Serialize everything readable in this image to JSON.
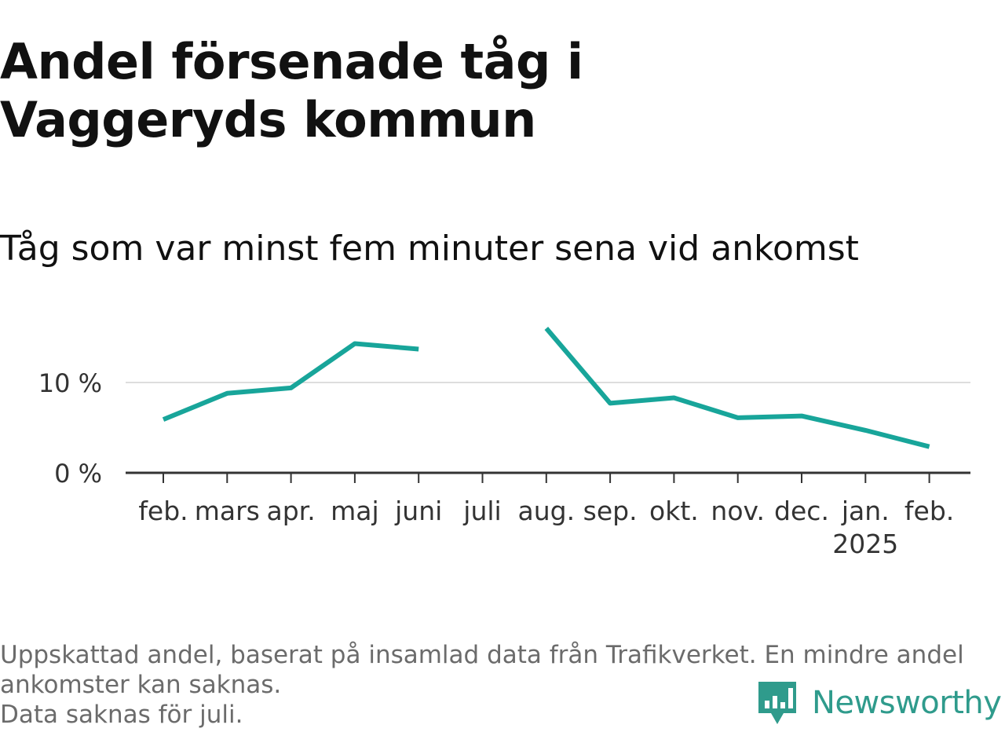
{
  "title": "Andel försenade tåg i Vaggeryds kommun",
  "subtitle": "Tåg som var minst fem minuter sena vid ankomst",
  "footnote": [
    "Uppskattad andel, baserat på insamlad data från Trafikverket. En mindre andel ankomster kan saknas.",
    "Data saknas för juli."
  ],
  "brand": {
    "name": "Newsworthy",
    "icon": "newsworthy-logo-icon",
    "color": "#2f9b8c"
  },
  "chart_data": {
    "type": "line",
    "categories": [
      "feb.",
      "mars",
      "apr.",
      "maj",
      "juni",
      "juli",
      "aug.",
      "sep.",
      "okt.",
      "nov.",
      "dec.",
      "jan.",
      "feb."
    ],
    "year_labels": [
      "",
      "",
      "",
      "",
      "",
      "",
      "",
      "",
      "",
      "",
      "",
      "2025",
      ""
    ],
    "series": [
      {
        "color": "#18a59a",
        "values": [
          5.9,
          8.8,
          9.4,
          14.3,
          13.7,
          null,
          16.0,
          7.7,
          8.3,
          6.1,
          6.3,
          4.7,
          2.9
        ]
      }
    ],
    "yticks": [
      0,
      10
    ],
    "ytick_labels": [
      "0 %",
      "10 %"
    ],
    "ylim": [
      0,
      16
    ],
    "xlabel": "",
    "ylabel": "",
    "grid": true,
    "gridline_color": "#dddddd",
    "axis_color": "#333333"
  }
}
